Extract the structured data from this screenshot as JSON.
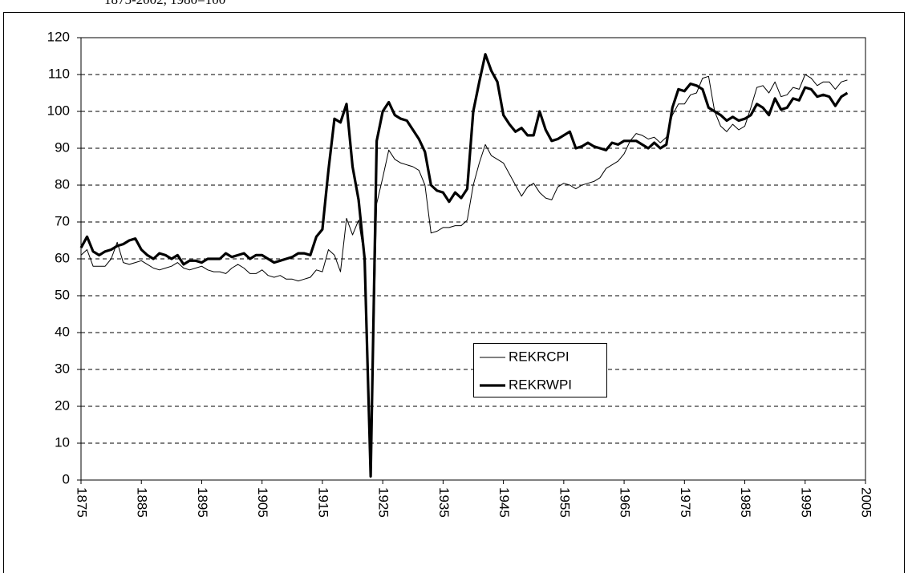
{
  "chart_data": {
    "type": "line",
    "subtitle": "1875-2002, 1980=100",
    "x": [
      1875,
      1876,
      1877,
      1878,
      1879,
      1880,
      1881,
      1882,
      1883,
      1884,
      1885,
      1886,
      1887,
      1888,
      1889,
      1890,
      1891,
      1892,
      1893,
      1894,
      1895,
      1896,
      1897,
      1898,
      1899,
      1900,
      1901,
      1902,
      1903,
      1904,
      1905,
      1906,
      1907,
      1908,
      1909,
      1910,
      1911,
      1912,
      1913,
      1914,
      1915,
      1916,
      1917,
      1918,
      1919,
      1920,
      1921,
      1922,
      1923,
      1924,
      1925,
      1926,
      1927,
      1928,
      1929,
      1930,
      1931,
      1932,
      1933,
      1934,
      1935,
      1936,
      1937,
      1938,
      1939,
      1940,
      1941,
      1942,
      1943,
      1944,
      1945,
      1946,
      1947,
      1948,
      1949,
      1950,
      1951,
      1952,
      1953,
      1954,
      1955,
      1956,
      1957,
      1958,
      1959,
      1960,
      1961,
      1962,
      1963,
      1964,
      1965,
      1966,
      1967,
      1968,
      1969,
      1970,
      1971,
      1972,
      1973,
      1974,
      1975,
      1976,
      1977,
      1978,
      1979,
      1980,
      1981,
      1982,
      1983,
      1984,
      1985,
      1986,
      1987,
      1988,
      1989,
      1990,
      1991,
      1992,
      1993,
      1994,
      1995,
      1996,
      1997,
      1998,
      1999,
      2000,
      2001,
      2002
    ],
    "series": [
      {
        "name": "REKRCPI",
        "color": "#000000",
        "width": 1,
        "values": [
          61,
          62.5,
          58,
          58,
          58,
          60,
          64.5,
          59,
          58.5,
          59,
          59.5,
          58.5,
          57.5,
          57,
          57.5,
          58,
          59,
          57.5,
          57,
          57.5,
          58,
          57,
          56.5,
          56.5,
          56,
          57.5,
          58.5,
          57.5,
          56,
          56,
          57,
          55.5,
          55,
          55.5,
          54.5,
          54.5,
          54,
          54.5,
          55,
          57,
          56.5,
          62.5,
          61,
          56.5,
          71,
          66.5,
          70.5,
          60,
          1,
          75,
          82,
          89.5,
          87,
          86,
          85.5,
          85,
          84,
          80,
          67,
          67.5,
          68.5,
          68.5,
          69,
          69,
          70.5,
          80,
          86,
          91,
          88,
          87,
          86,
          83,
          80,
          77,
          79.5,
          80.5,
          78,
          76.5,
          76,
          79.5,
          80.5,
          80,
          79,
          80,
          80.5,
          81,
          82,
          84.5,
          85.5,
          86.5,
          88.5,
          92,
          94,
          93.5,
          92.5,
          93,
          91.5,
          93,
          99,
          102,
          102,
          104.5,
          105,
          109,
          109.5,
          100,
          96,
          94.5,
          96.5,
          95,
          96,
          101,
          106.5,
          107,
          105,
          108,
          104,
          104.5,
          106.5,
          106,
          110,
          109,
          107,
          108,
          108,
          106,
          108,
          108.5
        ]
      },
      {
        "name": "REKRWPI",
        "color": "#000000",
        "width": 3.2,
        "values": [
          63,
          66,
          62,
          61,
          62,
          62.5,
          63.5,
          64,
          65,
          65.5,
          62.5,
          61,
          60,
          61.5,
          61,
          60,
          61,
          58.5,
          59.5,
          59.5,
          59,
          60,
          60,
          60,
          61.5,
          60.5,
          61,
          61.5,
          60,
          61,
          61,
          60,
          59,
          59.5,
          60,
          60.5,
          61.5,
          61.5,
          61,
          66,
          68,
          84,
          98,
          97,
          102,
          85,
          76,
          60,
          1,
          92,
          100,
          102.5,
          99,
          98,
          97.5,
          95,
          92.5,
          89,
          80,
          78.5,
          78,
          75.5,
          78,
          76.5,
          79,
          100,
          108,
          115.5,
          111,
          108,
          99,
          96.5,
          94.5,
          95.5,
          93.5,
          93.5,
          100,
          95,
          92,
          92.5,
          93.5,
          94.5,
          90,
          90.5,
          91.5,
          90.5,
          90,
          89.5,
          91.5,
          91,
          92,
          92,
          92,
          91,
          90,
          91.5,
          90,
          91,
          101,
          106,
          105.5,
          107.5,
          107,
          106,
          101,
          100,
          99,
          97.5,
          98.5,
          97.5,
          98,
          99,
          102,
          101,
          99,
          103.5,
          100.5,
          101,
          103.5,
          103,
          106.5,
          106,
          104,
          104.5,
          104,
          101.5,
          104,
          105
        ]
      }
    ],
    "xlim": [
      1875,
      2005
    ],
    "xticks": [
      1875,
      1885,
      1895,
      1905,
      1915,
      1925,
      1935,
      1945,
      1955,
      1965,
      1975,
      1985,
      1995,
      2005
    ],
    "ylim": [
      0,
      120
    ],
    "yticks": [
      0,
      10,
      20,
      30,
      40,
      50,
      60,
      70,
      80,
      90,
      100,
      110,
      120
    ],
    "grid": true
  }
}
